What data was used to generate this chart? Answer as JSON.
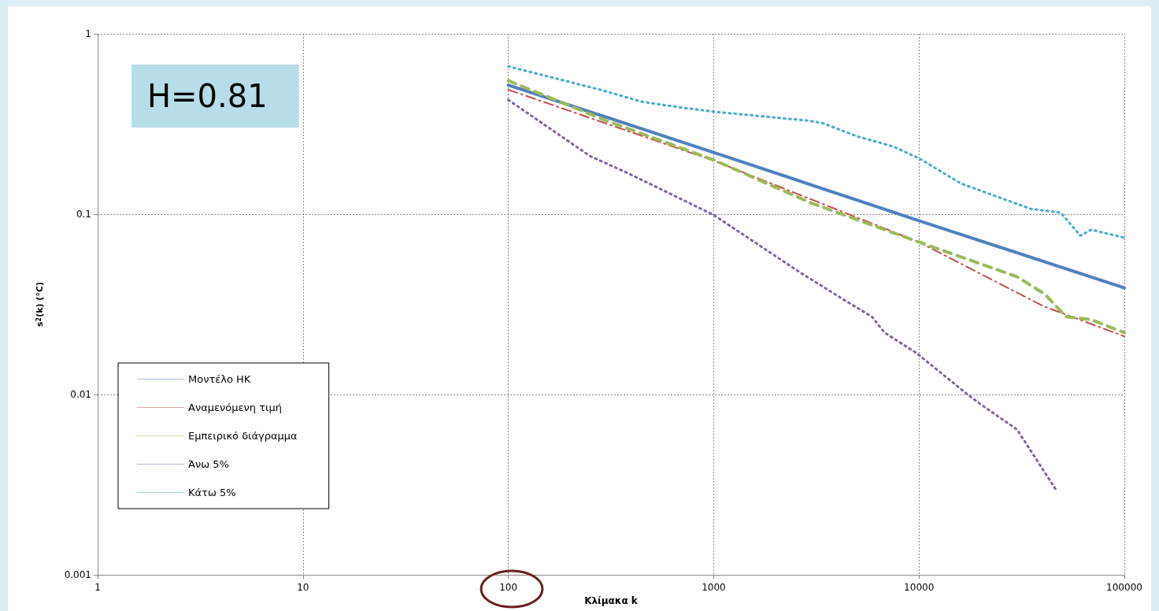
{
  "chart_data": {
    "type": "line",
    "xlabel": "Κλίμακα k",
    "ylabel": "s$^{2}$(k) (°C)",
    "annotations": [
      "H=0.81"
    ],
    "log": "xy",
    "xlim": [
      1,
      100000
    ],
    "xticks": [
      1,
      10,
      100,
      1000,
      10000,
      100000
    ],
    "ylim": [
      0.001,
      1
    ],
    "yticks": [
      0.001,
      0.01,
      0.1,
      1
    ],
    "grid": true,
    "legend": "bottom left",
    "marker": "none",
    "series": [
      {
        "name": "Μοντέλο ΗΚ",
        "color": "#4f81bd",
        "line_style": "solid",
        "x": [
          100,
          1000,
          10000,
          100000
        ],
        "values": [
          0.52,
          0.22,
          0.092,
          0.039
        ]
      },
      {
        "name": "Αναμενόμενη τιμή",
        "color": "#c0504d",
        "line_style": "dashdot",
        "x": [
          100,
          1000,
          10000,
          40000,
          100000
        ],
        "values": [
          0.49,
          0.198,
          0.07,
          0.031,
          0.021
        ]
      },
      {
        "name": "Εμπειρικό διάγραμμα",
        "color": "#9bbb59",
        "line_style": "dashed",
        "x": [
          100,
          300,
          1000,
          3000,
          10000,
          30000,
          41000,
          52000,
          69000,
          100000
        ],
        "values": [
          0.55,
          0.33,
          0.2,
          0.115,
          0.07,
          0.045,
          0.036,
          0.027,
          0.026,
          0.022
        ]
      },
      {
        "name": "Άνω 5%",
        "color": "#8064a2",
        "line_style": "dotted",
        "x": [
          100,
          250,
          390,
          1000,
          2600,
          4400,
          5900,
          6800,
          9700,
          16700,
          20000,
          30000,
          47000
        ],
        "values": [
          0.43,
          0.21,
          0.167,
          0.099,
          0.048,
          0.033,
          0.027,
          0.022,
          0.017,
          0.0103,
          0.0088,
          0.0064,
          0.0029
        ]
      },
      {
        "name": "Κάτω 5%",
        "color": "#4bacc6",
        "line_style": "dotted",
        "x": [
          100,
          280,
          450,
          700,
          1000,
          2900,
          3400,
          5000,
          7500,
          10000,
          16000,
          35000,
          49000,
          61000,
          69000,
          100000
        ],
        "values": [
          0.66,
          0.49,
          0.42,
          0.39,
          0.37,
          0.33,
          0.32,
          0.27,
          0.237,
          0.204,
          0.148,
          0.107,
          0.102,
          0.076,
          0.082,
          0.074
        ]
      }
    ]
  }
}
